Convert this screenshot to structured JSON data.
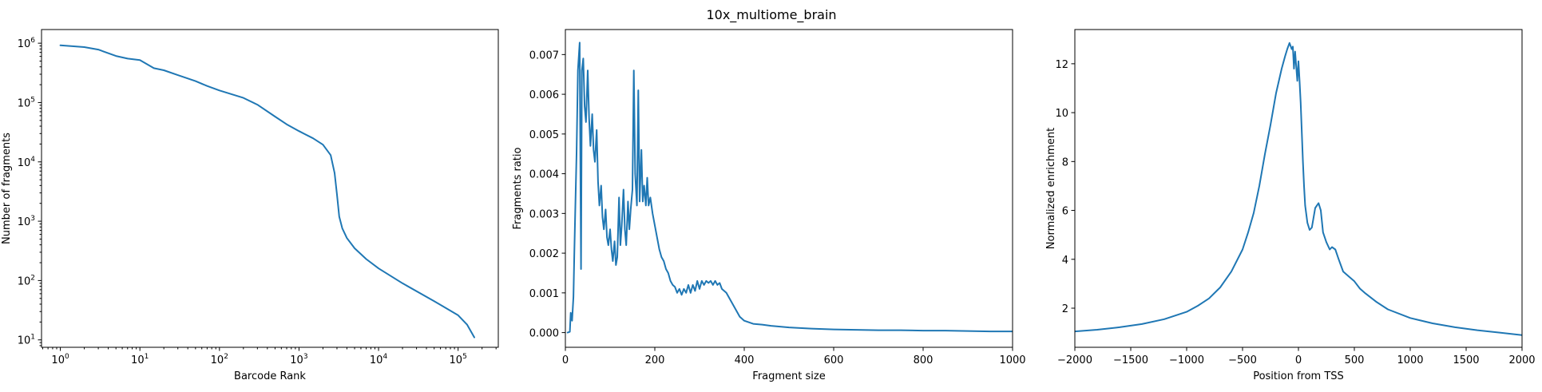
{
  "figure": {
    "title": "10x_multiome_brain"
  },
  "colors": {
    "series": "#1f77b4",
    "axis": "#000000",
    "background": "#ffffff"
  },
  "chart_data": [
    {
      "type": "line",
      "title": "",
      "xlabel": "Barcode Rank",
      "ylabel": "Number of fragments",
      "xscale": "log",
      "yscale": "log",
      "xlim": [
        0.58,
        320000
      ],
      "ylim": [
        7.5,
        1700000
      ],
      "xticks": [
        1,
        10,
        100,
        1000,
        10000,
        100000
      ],
      "xtick_labels": [
        {
          "base": "10",
          "exp": "0"
        },
        {
          "base": "10",
          "exp": "1"
        },
        {
          "base": "10",
          "exp": "2"
        },
        {
          "base": "10",
          "exp": "3"
        },
        {
          "base": "10",
          "exp": "4"
        },
        {
          "base": "10",
          "exp": "5"
        }
      ],
      "yticks": [
        10,
        100,
        1000,
        10000,
        100000,
        1000000
      ],
      "ytick_labels": [
        {
          "base": "10",
          "exp": "1"
        },
        {
          "base": "10",
          "exp": "2"
        },
        {
          "base": "10",
          "exp": "3"
        },
        {
          "base": "10",
          "exp": "4"
        },
        {
          "base": "10",
          "exp": "5"
        },
        {
          "base": "10",
          "exp": "6"
        }
      ],
      "grid": false,
      "series": [
        {
          "x": [
            1,
            2,
            3,
            5,
            7,
            10,
            15,
            20,
            30,
            50,
            70,
            100,
            200,
            300,
            500,
            700,
            1000,
            1500,
            2000,
            2500,
            2800,
            3000,
            3200,
            3500,
            4000,
            5000,
            7000,
            10000,
            20000,
            50000,
            100000,
            130000,
            160000
          ],
          "y": [
            920000,
            860000,
            780000,
            610000,
            550000,
            520000,
            380000,
            350000,
            290000,
            230000,
            190000,
            160000,
            120000,
            92000,
            58000,
            43000,
            33000,
            25000,
            19500,
            13000,
            6500,
            2800,
            1200,
            760,
            520,
            350,
            230,
            160,
            90,
            45,
            26,
            18,
            11
          ]
        }
      ]
    },
    {
      "type": "line",
      "title": "",
      "xlabel": "Fragment size",
      "ylabel": "Fragments ratio",
      "xlim": [
        0,
        1000
      ],
      "ylim": [
        -0.00037,
        0.00763
      ],
      "xticks": [
        0,
        200,
        400,
        600,
        800,
        1000
      ],
      "xtick_labels": [
        "0",
        "200",
        "400",
        "600",
        "800",
        "1000"
      ],
      "yticks": [
        0,
        0.001,
        0.002,
        0.003,
        0.004,
        0.005,
        0.006,
        0.007
      ],
      "ytick_labels": [
        "0.000",
        "0.001",
        "0.002",
        "0.003",
        "0.004",
        "0.005",
        "0.006",
        "0.007"
      ],
      "grid": false,
      "series": [
        {
          "x": [
            5,
            10,
            12,
            15,
            18,
            20,
            22,
            25,
            28,
            32,
            35,
            37,
            40,
            43,
            46,
            50,
            53,
            56,
            60,
            63,
            66,
            70,
            73,
            76,
            80,
            83,
            86,
            90,
            93,
            96,
            100,
            103,
            106,
            110,
            113,
            116,
            120,
            123,
            126,
            130,
            133,
            136,
            140,
            143,
            146,
            150,
            153,
            156,
            160,
            163,
            166,
            170,
            173,
            176,
            180,
            183,
            186,
            190,
            195,
            200,
            205,
            210,
            215,
            220,
            225,
            230,
            235,
            240,
            245,
            250,
            255,
            260,
            265,
            270,
            275,
            280,
            285,
            290,
            295,
            300,
            305,
            310,
            315,
            320,
            325,
            330,
            335,
            340,
            345,
            350,
            360,
            370,
            380,
            390,
            400,
            420,
            440,
            460,
            480,
            500,
            550,
            600,
            650,
            700,
            750,
            800,
            850,
            900,
            950,
            1000
          ],
          "y": [
            0.0,
            2e-05,
            0.0005,
            0.0003,
            0.0009,
            0.002,
            0.003,
            0.0045,
            0.0066,
            0.0073,
            0.0016,
            0.0066,
            0.0069,
            0.0057,
            0.0053,
            0.0066,
            0.0054,
            0.0047,
            0.0055,
            0.0046,
            0.0043,
            0.0051,
            0.0038,
            0.0032,
            0.0037,
            0.0029,
            0.0026,
            0.0031,
            0.0024,
            0.0022,
            0.0026,
            0.0021,
            0.0018,
            0.0023,
            0.0017,
            0.0019,
            0.0034,
            0.0022,
            0.0027,
            0.0036,
            0.0026,
            0.0022,
            0.0033,
            0.0026,
            0.0031,
            0.0036,
            0.0066,
            0.004,
            0.0032,
            0.0061,
            0.0033,
            0.0046,
            0.0033,
            0.0037,
            0.0032,
            0.0039,
            0.0032,
            0.0034,
            0.003,
            0.0027,
            0.0024,
            0.0021,
            0.0019,
            0.0018,
            0.0016,
            0.0015,
            0.0013,
            0.0012,
            0.00115,
            0.001,
            0.0011,
            0.00095,
            0.0011,
            0.001,
            0.0012,
            0.001,
            0.0012,
            0.00105,
            0.0013,
            0.0011,
            0.0013,
            0.0012,
            0.0013,
            0.00125,
            0.0013,
            0.0012,
            0.0013,
            0.0012,
            0.00125,
            0.0011,
            0.001,
            0.0008,
            0.0006,
            0.0004,
            0.0003,
            0.00022,
            0.0002,
            0.00017,
            0.00015,
            0.00013,
            0.0001,
            8e-05,
            7e-05,
            6e-05,
            6e-05,
            5e-05,
            5e-05,
            4e-05,
            3e-05,
            3e-05
          ]
        }
      ]
    },
    {
      "type": "line",
      "title": "",
      "xlabel": "Position from TSS",
      "ylabel": "Normalized enrichment",
      "xlim": [
        -2000,
        2000
      ],
      "ylim": [
        0.4,
        13.4
      ],
      "xticks": [
        -2000,
        -1500,
        -1000,
        -500,
        0,
        500,
        1000,
        1500,
        2000
      ],
      "xtick_labels": [
        "−2000",
        "−1500",
        "−1000",
        "−500",
        "0",
        "500",
        "1000",
        "1500",
        "2000"
      ],
      "yticks": [
        2,
        4,
        6,
        8,
        10,
        12
      ],
      "ytick_labels": [
        "2",
        "4",
        "6",
        "8",
        "10",
        "12"
      ],
      "grid": false,
      "series": [
        {
          "x": [
            -2000,
            -1800,
            -1600,
            -1400,
            -1200,
            -1000,
            -900,
            -800,
            -700,
            -600,
            -500,
            -450,
            -400,
            -350,
            -300,
            -250,
            -200,
            -180,
            -150,
            -120,
            -100,
            -80,
            -60,
            -50,
            -40,
            -30,
            -20,
            -10,
            0,
            10,
            20,
            30,
            40,
            50,
            60,
            80,
            100,
            120,
            150,
            180,
            200,
            220,
            250,
            280,
            300,
            330,
            360,
            400,
            450,
            500,
            550,
            600,
            700,
            800,
            1000,
            1200,
            1400,
            1600,
            1800,
            2000
          ],
          "y": [
            1.05,
            1.12,
            1.22,
            1.35,
            1.55,
            1.85,
            2.1,
            2.4,
            2.85,
            3.5,
            4.4,
            5.1,
            5.9,
            7.0,
            8.3,
            9.5,
            10.8,
            11.2,
            11.8,
            12.3,
            12.6,
            12.85,
            12.6,
            12.7,
            11.8,
            12.5,
            11.9,
            11.3,
            12.1,
            11.3,
            10.4,
            9.2,
            8.0,
            7.0,
            6.2,
            5.5,
            5.2,
            5.3,
            6.1,
            6.3,
            6.0,
            5.1,
            4.7,
            4.4,
            4.5,
            4.4,
            4.0,
            3.5,
            3.3,
            3.1,
            2.8,
            2.6,
            2.25,
            1.95,
            1.6,
            1.38,
            1.22,
            1.1,
            1.0,
            0.9
          ]
        }
      ]
    }
  ]
}
